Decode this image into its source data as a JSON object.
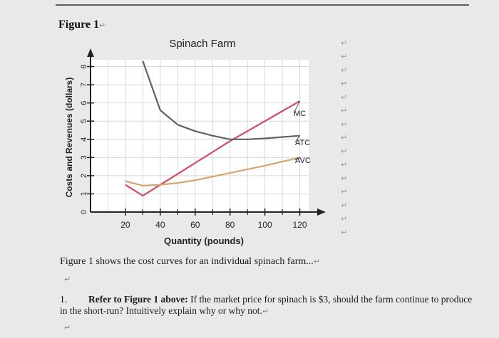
{
  "figure_heading": "Figure 1",
  "caption": "Figure 1 shows the cost curves for an individual spinach farm...",
  "question": {
    "number": "1.",
    "lead": "Refer to Figure 1 above:",
    "text": " If the market price for spinach is $3, should the farm continue to produce in the short-run? Intuitively explain why or why not."
  },
  "colors": {
    "mc": "#d24a62",
    "atc": "#5a6368",
    "avc": "#d4a46e",
    "grid": "#d8d8d8",
    "axis": "#222222"
  },
  "chart_data": {
    "type": "line",
    "title": "Spinach Farm",
    "xlabel": "Quantity (pounds)",
    "ylabel": "Costs and Revenues (dollars)",
    "xlim": [
      0,
      130
    ],
    "ylim": [
      0,
      9
    ],
    "x_ticks": [
      20,
      40,
      60,
      80,
      100,
      120
    ],
    "y_ticks": [
      0,
      1,
      2,
      3,
      4,
      5,
      6,
      7,
      8
    ],
    "grid": true,
    "series": [
      {
        "name": "MC",
        "points": [
          [
            20,
            1.5
          ],
          [
            30,
            0.9
          ],
          [
            40,
            1.5
          ],
          [
            60,
            2.7
          ],
          [
            80,
            3.9
          ],
          [
            100,
            5.0
          ],
          [
            120,
            6.1
          ]
        ]
      },
      {
        "name": "ATC",
        "points": [
          [
            30,
            8.3
          ],
          [
            40,
            5.6
          ],
          [
            50,
            4.8
          ],
          [
            60,
            4.45
          ],
          [
            70,
            4.2
          ],
          [
            80,
            4.0
          ],
          [
            90,
            4.0
          ],
          [
            100,
            4.05
          ],
          [
            120,
            4.2
          ]
        ]
      },
      {
        "name": "AVC",
        "points": [
          [
            20,
            1.7
          ],
          [
            30,
            1.45
          ],
          [
            40,
            1.5
          ],
          [
            50,
            1.6
          ],
          [
            60,
            1.75
          ],
          [
            80,
            2.15
          ],
          [
            100,
            2.55
          ],
          [
            120,
            3.0
          ]
        ]
      }
    ]
  }
}
